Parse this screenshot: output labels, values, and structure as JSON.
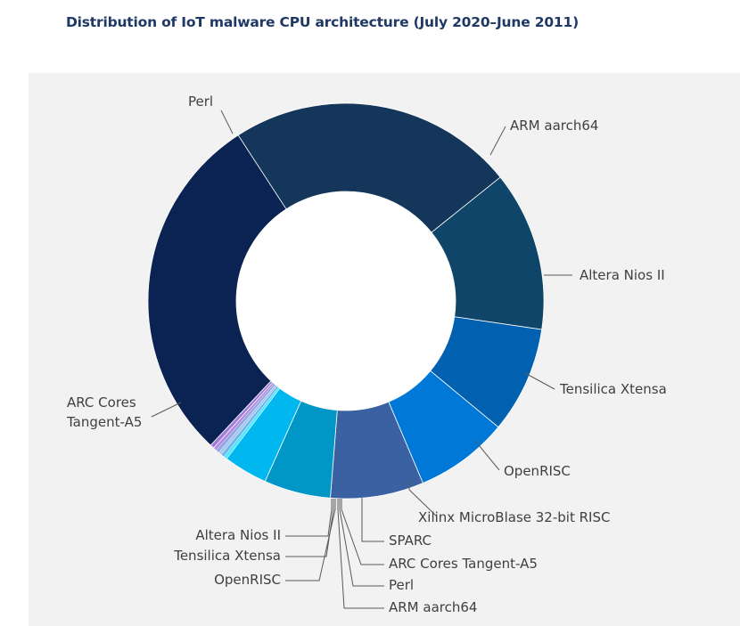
{
  "chart_data": {
    "type": "pie",
    "donut": true,
    "title": "Distribution of IoT malware CPU architecture (July 2020–June 2011)",
    "slices": [
      {
        "label": "Perl",
        "value": 21.5,
        "color": "#14365a"
      },
      {
        "label": "ARM aarch64",
        "value": 12.0,
        "color": "#0e4569"
      },
      {
        "label": "Altera Nios II",
        "value": 8.0,
        "color": "#0160b0"
      },
      {
        "label": "Tensilica Xtensa",
        "value": 7.0,
        "color": "#0078d7"
      },
      {
        "label": "OpenRISC",
        "value": 7.0,
        "color": "#3a62a3"
      },
      {
        "label": "Xilinx MicroBlase 32-bit RISC",
        "value": 5.0,
        "color": "#0096c6"
      },
      {
        "label": "SPARC",
        "value": 3.3,
        "color": "#00b7ef"
      },
      {
        "label": "ARC Cores Tangent-A5",
        "value": 0.25,
        "color": "#50e6ff"
      },
      {
        "label": "Perl",
        "value": 0.25,
        "color": "#6fb6e8"
      },
      {
        "label": "ARM aarch64",
        "value": 0.25,
        "color": "#a7c7f0"
      },
      {
        "label": "OpenRISC",
        "value": 0.25,
        "color": "#8fa8e0"
      },
      {
        "label": "Tensilica Xtensa",
        "value": 0.25,
        "color": "#b48ae0"
      },
      {
        "label": "Altera Nios II",
        "value": 0.3,
        "color": "#a07ad8"
      },
      {
        "label": "ARC Cores\nTangent-A5",
        "value": 26.5,
        "color": "#0b2352"
      }
    ],
    "start_angle_deg": -33,
    "legend": "none",
    "labels": "outside with leader lines"
  }
}
